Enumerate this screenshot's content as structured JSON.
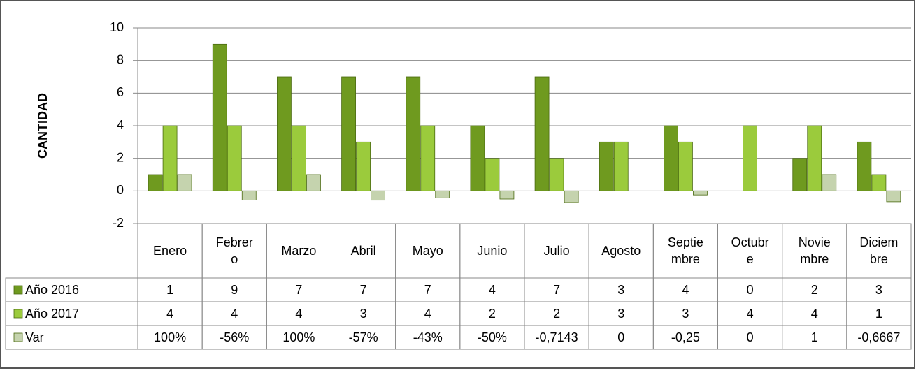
{
  "chart_data": {
    "type": "bar",
    "y_label": "CANTIDAD",
    "categories": [
      "Enero",
      "Febrero",
      "Marzo",
      "Abril",
      "Mayo",
      "Junio",
      "Julio",
      "Agosto",
      "Septiembre",
      "Octubre",
      "Noviembre",
      "Diciembre"
    ],
    "series": [
      {
        "name": "Año 2016",
        "color": "#6f9a1f",
        "values": [
          1,
          9,
          7,
          7,
          7,
          4,
          7,
          3,
          4,
          0,
          2,
          3
        ]
      },
      {
        "name": "Año 2017",
        "color": "#9bcb3c",
        "values": [
          4,
          4,
          4,
          3,
          4,
          2,
          2,
          3,
          3,
          4,
          4,
          1
        ]
      },
      {
        "name": "Var",
        "color": "#c5d3ae",
        "values": [
          1,
          -0.56,
          1,
          -0.57,
          -0.43,
          -0.5,
          -0.7143,
          0,
          -0.25,
          0,
          1,
          -0.6667
        ],
        "value_labels": [
          "100%",
          "-56%",
          "100%",
          "-57%",
          "-43%",
          "-50%",
          "-0,7143",
          "0",
          "-0,25",
          "0",
          "1",
          "-0,6667"
        ]
      }
    ],
    "ylim": [
      -2,
      10
    ],
    "yticks": [
      -2,
      0,
      2,
      4,
      6,
      8,
      10
    ],
    "grid": true
  }
}
